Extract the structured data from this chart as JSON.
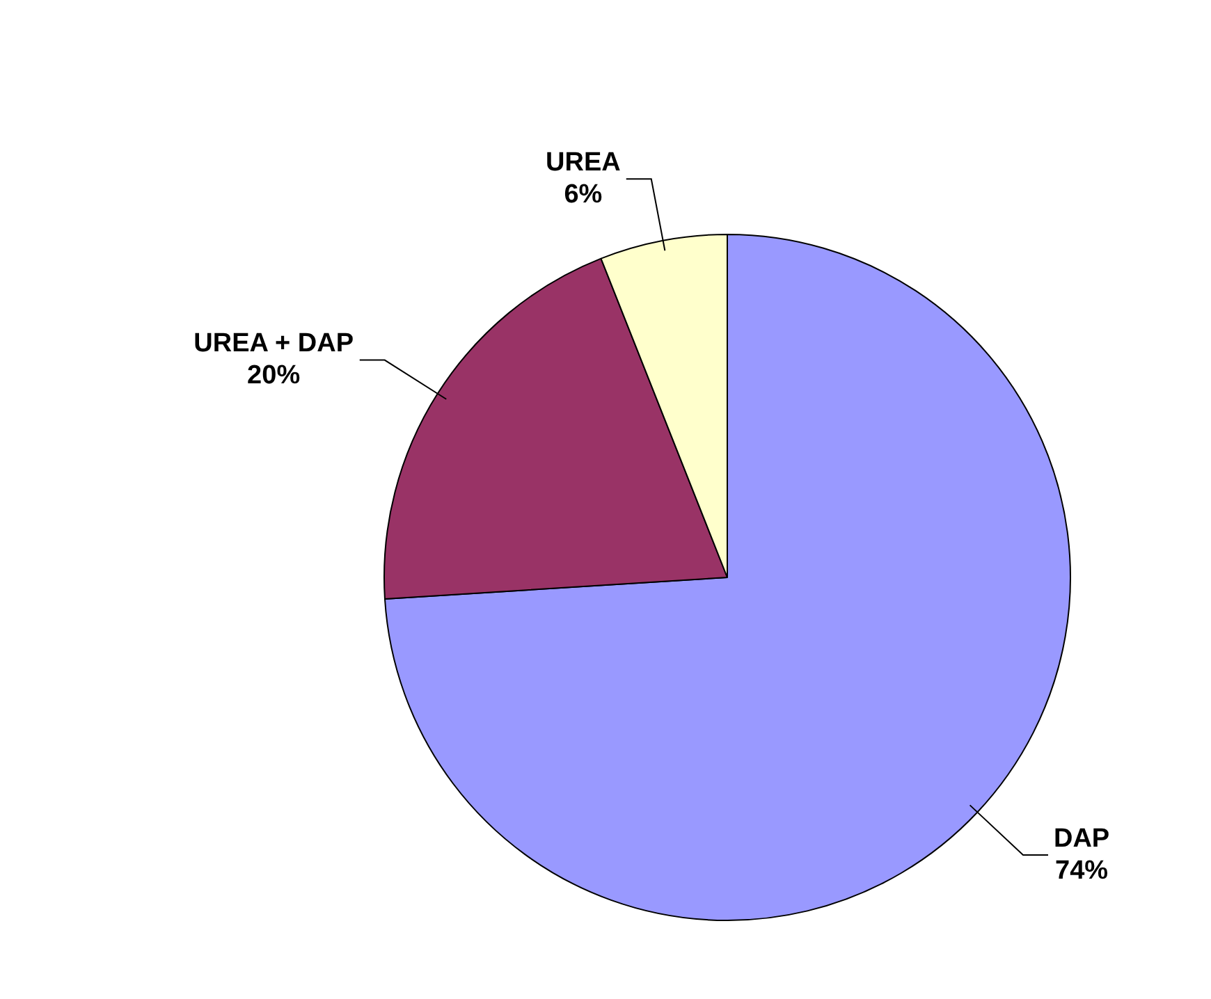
{
  "chart_data": {
    "type": "pie",
    "categories": [
      "DAP",
      "UREA + DAP",
      "UREA"
    ],
    "values": [
      74,
      20,
      6
    ],
    "colors": [
      "#9999ff",
      "#993366",
      "#ffffcc"
    ],
    "value_labels": [
      "74%",
      "20%",
      "6%"
    ],
    "legend": false
  }
}
